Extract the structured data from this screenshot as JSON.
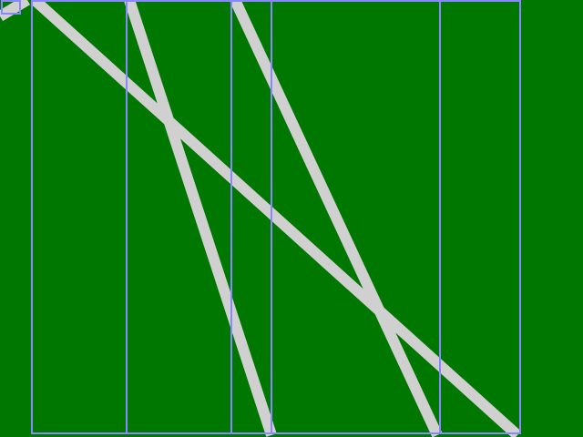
{
  "colors": {
    "background": "#007700",
    "grid": "#8888ff",
    "path": "#d0d0d0"
  },
  "board": {
    "columns": 5,
    "rows": 1
  },
  "icons": {
    "corner_marker": "small-square-icon"
  }
}
